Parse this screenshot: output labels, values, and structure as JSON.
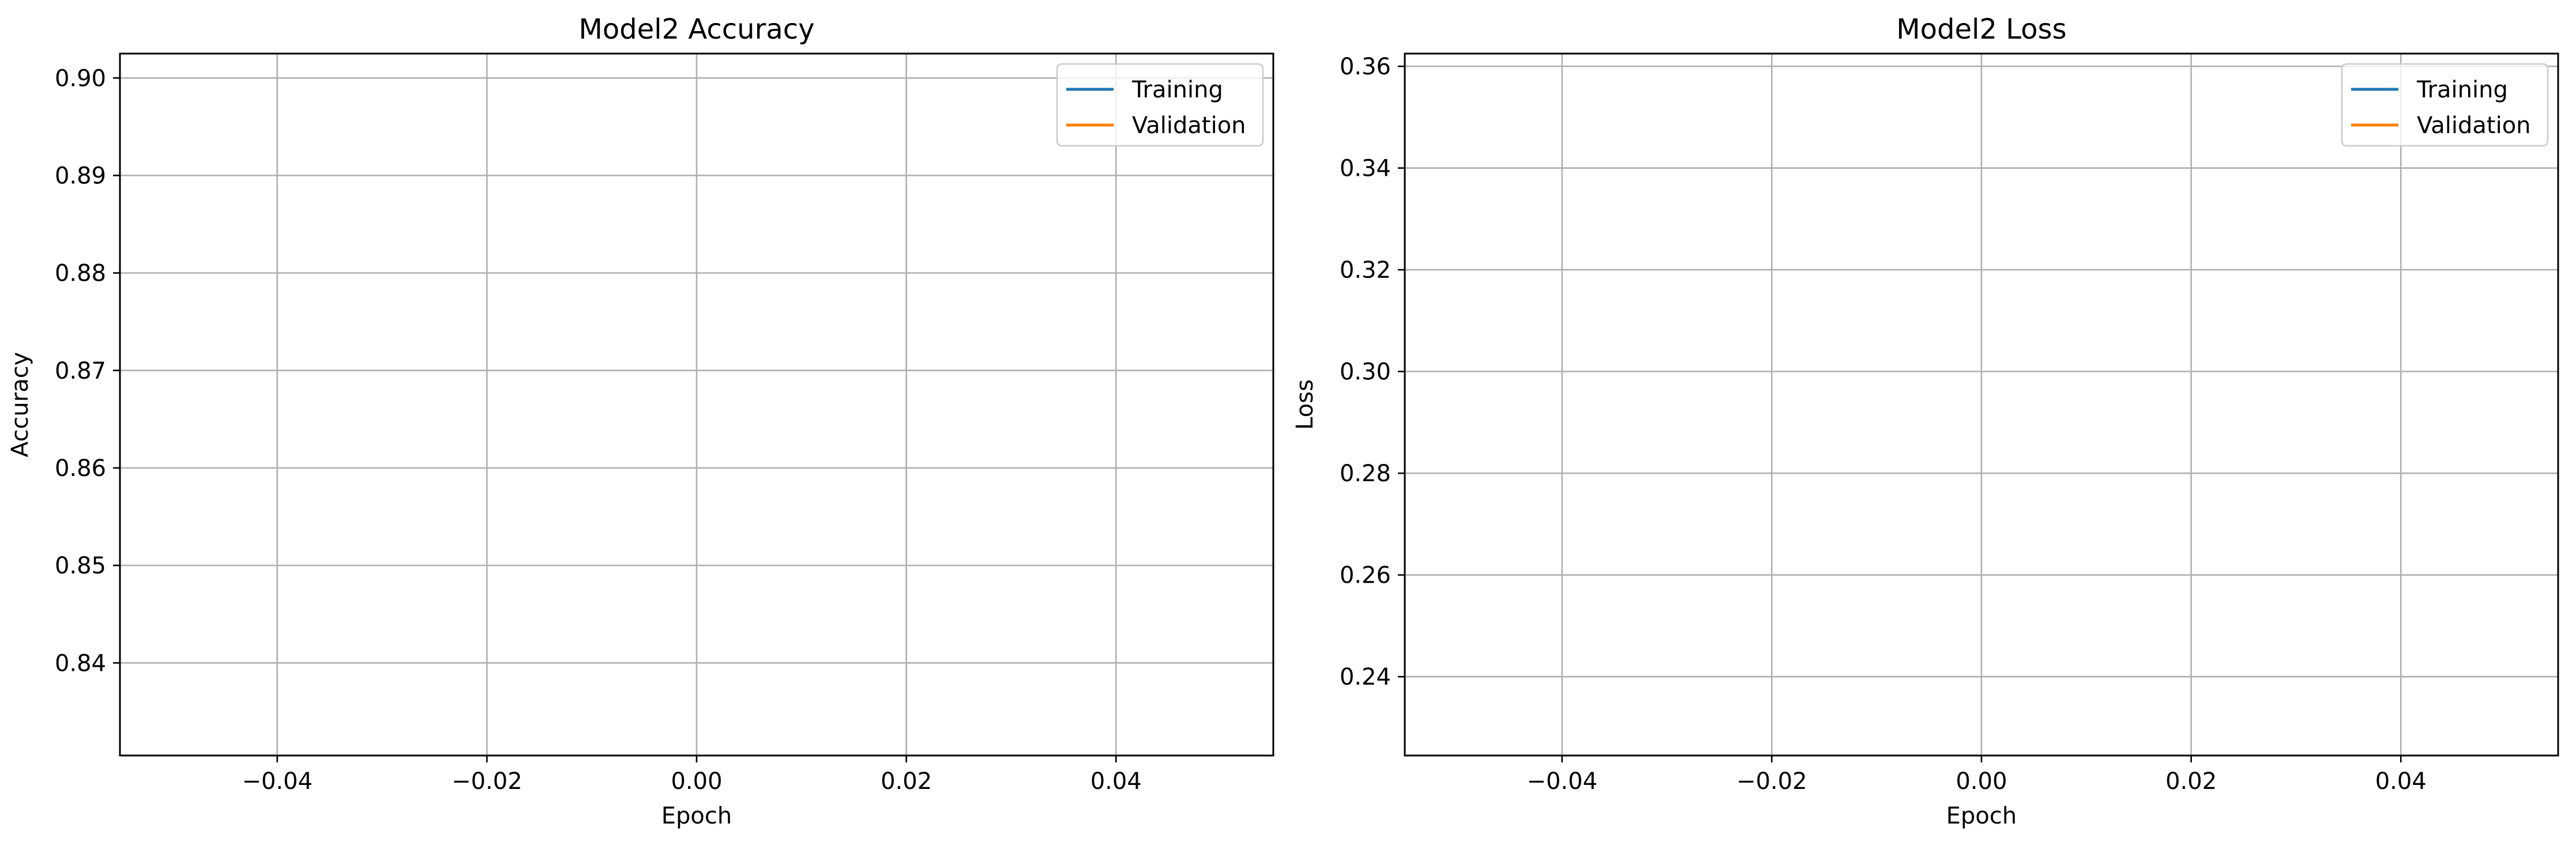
{
  "chart_data": [
    {
      "type": "line",
      "title": "Model2 Accuracy",
      "xlabel": "Epoch",
      "ylabel": "Accuracy",
      "xlim": [
        -0.055,
        0.055
      ],
      "ylim": [
        0.8305,
        0.9025
      ],
      "xticks": [
        -0.04,
        -0.02,
        0.0,
        0.02,
        0.04
      ],
      "xtick_labels": [
        "−0.04",
        "−0.02",
        "0.00",
        "0.02",
        "0.04"
      ],
      "yticks": [
        0.84,
        0.85,
        0.86,
        0.87,
        0.88,
        0.89,
        0.9
      ],
      "ytick_labels": [
        "0.84",
        "0.85",
        "0.86",
        "0.87",
        "0.88",
        "0.89",
        "0.90"
      ],
      "grid": true,
      "legend_position": "upper right",
      "series": [
        {
          "name": "Training",
          "color": "#1f77b4",
          "x": [],
          "y": []
        },
        {
          "name": "Validation",
          "color": "#ff7f0e",
          "x": [],
          "y": []
        }
      ]
    },
    {
      "type": "line",
      "title": "Model2 Loss",
      "xlabel": "Epoch",
      "ylabel": "Loss",
      "xlim": [
        -0.055,
        0.055
      ],
      "ylim": [
        0.2245,
        0.3625
      ],
      "xticks": [
        -0.04,
        -0.02,
        0.0,
        0.02,
        0.04
      ],
      "xtick_labels": [
        "−0.04",
        "−0.02",
        "0.00",
        "0.02",
        "0.04"
      ],
      "yticks": [
        0.24,
        0.26,
        0.28,
        0.3,
        0.32,
        0.34,
        0.36
      ],
      "ytick_labels": [
        "0.24",
        "0.26",
        "0.28",
        "0.30",
        "0.32",
        "0.34",
        "0.36"
      ],
      "grid": true,
      "legend_position": "upper right",
      "series": [
        {
          "name": "Training",
          "color": "#1f77b4",
          "x": [],
          "y": []
        },
        {
          "name": "Validation",
          "color": "#ff7f0e",
          "x": [],
          "y": []
        }
      ]
    }
  ]
}
